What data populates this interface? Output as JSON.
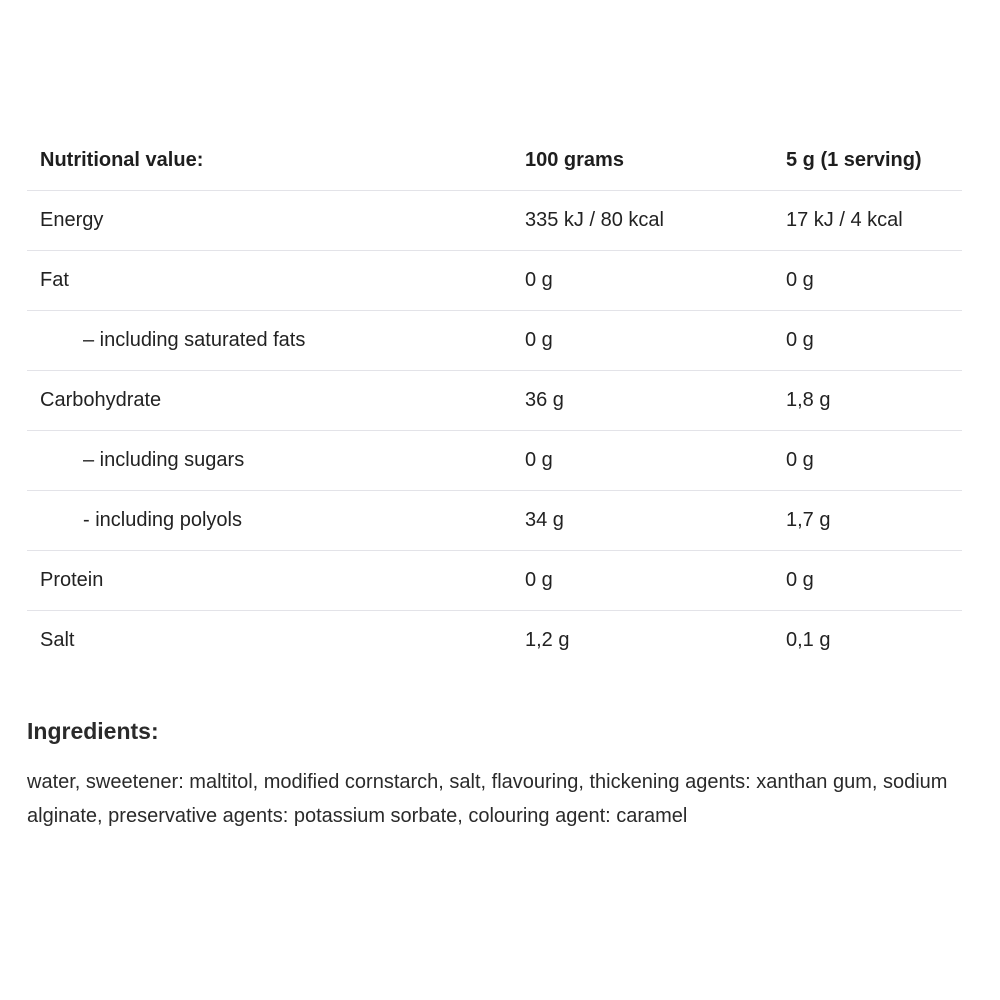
{
  "table": {
    "headers": [
      "Nutritional value:",
      "100 grams",
      "5 g (1 serving)"
    ],
    "rows": [
      {
        "name": "Energy",
        "per100": "335 kJ / 80 kcal",
        "perServing": "17 kJ / 4 kcal",
        "indent": false
      },
      {
        "name": "Fat",
        "per100": "0 g",
        "perServing": "0 g",
        "indent": false
      },
      {
        "name": "– including saturated fats",
        "per100": "0 g",
        "perServing": "0 g",
        "indent": true
      },
      {
        "name": "Carbohydrate",
        "per100": "36 g",
        "perServing": "1,8 g",
        "indent": false
      },
      {
        "name": "– including sugars",
        "per100": "0 g",
        "perServing": "0 g",
        "indent": true
      },
      {
        "name": "- including polyols",
        "per100": "34 g",
        "perServing": "1,7 g",
        "indent": true
      },
      {
        "name": "Protein",
        "per100": "0 g",
        "perServing": "0 g",
        "indent": false
      },
      {
        "name": "Salt",
        "per100": "1,2 g",
        "perServing": "0,1 g",
        "indent": false
      }
    ]
  },
  "ingredients": {
    "heading": "Ingredients:",
    "text": "water, sweetener: maltitol, modified cornstarch, salt, flavouring, thickening agents: xanthan gum, sodium alginate, preservative agents: potassium sorbate, colouring agent: caramel"
  }
}
